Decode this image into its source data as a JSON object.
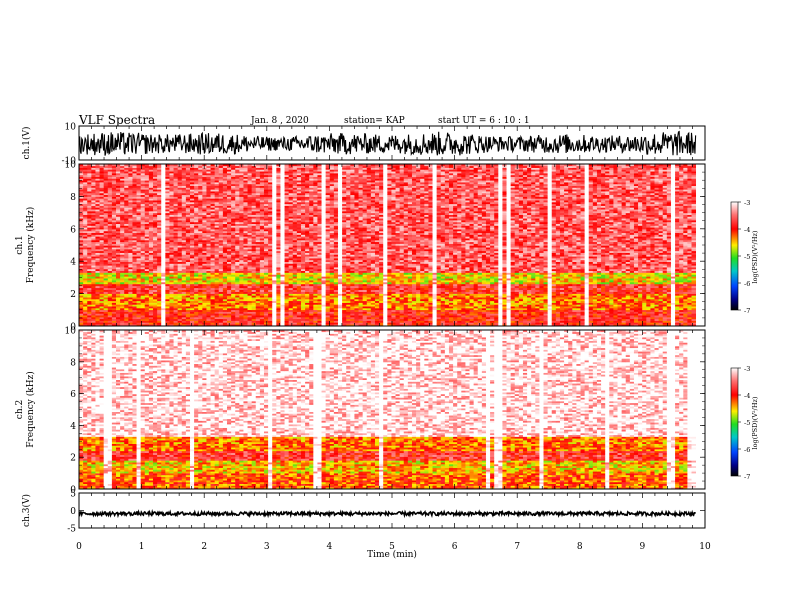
{
  "header": {
    "title": "VLF Spectra",
    "date": "Jan. 8 , 2020",
    "station": "station= KAP",
    "start_ut": "start UT = 6 : 10 : 1"
  },
  "chart_data": [
    {
      "type": "line",
      "panel": "ch1-waveform",
      "ylabel": "ch.1(V)",
      "ylim": [
        -10,
        10
      ],
      "yticks": [
        "10",
        "-10"
      ],
      "xlim": [
        0,
        10
      ],
      "x_extent_data": [
        0,
        9.85
      ],
      "style": "dense noisy waveform",
      "approx_range": [
        -8,
        7
      ],
      "color": "#000000"
    },
    {
      "type": "heatmap",
      "panel": "ch1-spectrogram",
      "ylabel": "ch.1\nFrequency (kHz)",
      "ylim": [
        0,
        10
      ],
      "yticks": [
        "0",
        "2",
        "4",
        "6",
        "8",
        "10"
      ],
      "xlim": [
        0,
        10
      ],
      "x_extent_data": [
        0,
        9.85
      ],
      "colorbar": {
        "label": "log(PSD)(V²/Hz)",
        "range": [
          -7,
          -3
        ],
        "ticks": [
          "-3",
          "-4",
          "-5",
          "-6",
          "-7"
        ]
      },
      "bands_kHz_logPSD": [
        {
          "from": 0,
          "to": 1.0,
          "logPSD": -3.9
        },
        {
          "from": 1.0,
          "to": 2.0,
          "logPSD": -4.3
        },
        {
          "from": 2.0,
          "to": 2.6,
          "logPSD": -3.8
        },
        {
          "from": 2.6,
          "to": 3.3,
          "logPSD": -4.6
        },
        {
          "from": 3.3,
          "to": 10,
          "logPSD": -3.6
        }
      ]
    },
    {
      "type": "heatmap",
      "panel": "ch2-spectrogram",
      "ylabel": "ch.2\nFrequency (kHz)",
      "ylim": [
        0,
        10
      ],
      "yticks": [
        "0",
        "2",
        "4",
        "6",
        "8",
        "10"
      ],
      "xlim": [
        0,
        10
      ],
      "x_extent_data": [
        0,
        9.85
      ],
      "colorbar": {
        "label": "log(PSD)(V²/Hz)",
        "range": [
          -7,
          -3
        ],
        "ticks": [
          "-3",
          "-4",
          "-5",
          "-6",
          "-7"
        ]
      },
      "bands_kHz_logPSD": [
        {
          "from": 0,
          "to": 1.0,
          "logPSD": -4.2
        },
        {
          "from": 1.0,
          "to": 1.8,
          "logPSD": -4.5
        },
        {
          "from": 1.8,
          "to": 2.4,
          "logPSD": -3.8
        },
        {
          "from": 2.4,
          "to": 3.3,
          "logPSD": -4.3
        },
        {
          "from": 3.3,
          "to": 10,
          "logPSD": -3.1
        }
      ]
    },
    {
      "type": "line",
      "panel": "ch3-waveform",
      "ylabel": "ch.3(V)",
      "ylim": [
        -5,
        5
      ],
      "yticks": [
        "5",
        "0",
        "-5"
      ],
      "xlim": [
        0,
        10
      ],
      "x_extent_data": [
        0,
        9.85
      ],
      "approx_range": [
        -1.4,
        -0.4
      ],
      "color": "#000000",
      "xlabel": "Time (min)",
      "xticks": [
        "0",
        "1",
        "2",
        "3",
        "4",
        "5",
        "6",
        "7",
        "8",
        "9",
        "10"
      ]
    }
  ]
}
